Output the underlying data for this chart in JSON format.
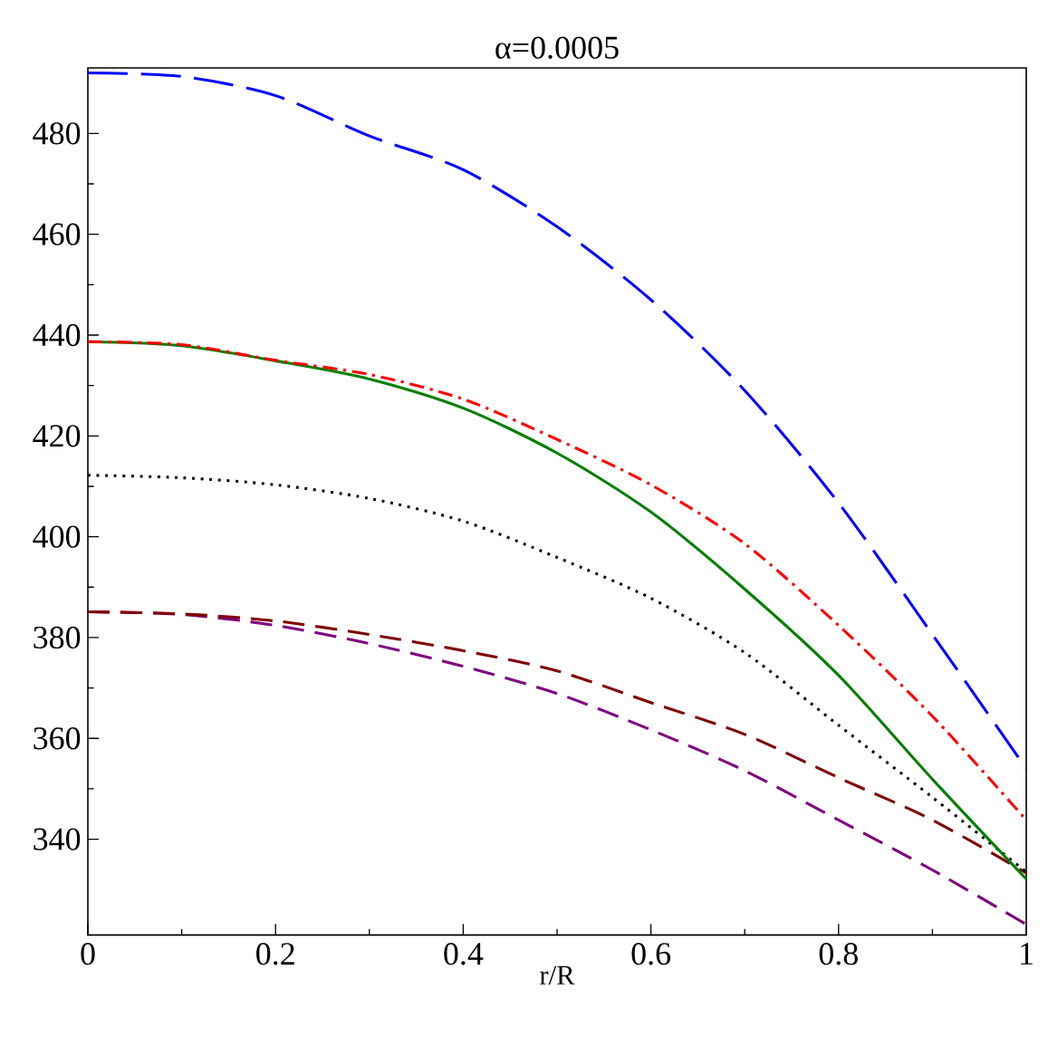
{
  "chart_data": {
    "type": "line",
    "title": "α=0.0005",
    "xlabel": "r/R",
    "xlim": [
      0,
      1
    ],
    "ylim": [
      321,
      493
    ],
    "xticks": [
      0,
      0.2,
      0.4,
      0.6,
      0.8,
      1
    ],
    "yticks": [
      340,
      360,
      380,
      400,
      420,
      440,
      460,
      480
    ],
    "x": [
      0,
      0.1,
      0.2,
      0.3,
      0.4,
      0.5,
      0.6,
      0.7,
      0.8,
      0.9,
      1
    ],
    "grid": false,
    "legend": false,
    "marker": "none",
    "series": [
      {
        "color": "#0000ff",
        "line_style": "longdash",
        "values": [
          492,
          491.3,
          487.5,
          479.5,
          472.8,
          461.5,
          447,
          429,
          406.7,
          380.6,
          354
        ]
      },
      {
        "color": "#ff0000",
        "line_style": "dashdot",
        "values": [
          438.7,
          438.1,
          435,
          432.2,
          427.3,
          419.3,
          410.3,
          398.6,
          382.4,
          364.4,
          343.8
        ]
      },
      {
        "color": "#008000",
        "line_style": "solid",
        "values": [
          438.7,
          437.9,
          434.9,
          431.3,
          425.5,
          416.6,
          404.9,
          389.6,
          372.5,
          351.9,
          332.1
        ]
      },
      {
        "color": "#000000",
        "line_style": "dotted",
        "values": [
          412.2,
          411.7,
          410.3,
          407.6,
          403.1,
          395.9,
          387.8,
          377,
          362.6,
          348.3,
          333.5
        ]
      },
      {
        "color": "#800000",
        "line_style": "dashed",
        "values": [
          385.1,
          384.7,
          383.3,
          380.6,
          377.4,
          373.4,
          367.1,
          360.8,
          352.2,
          343.8,
          333.3
        ]
      },
      {
        "color": "#800080",
        "line_style": "dashed",
        "values": [
          385.1,
          384.6,
          382.4,
          378.8,
          374.3,
          368.9,
          361.7,
          353.6,
          343.8,
          333.9,
          323.1
        ]
      }
    ]
  }
}
